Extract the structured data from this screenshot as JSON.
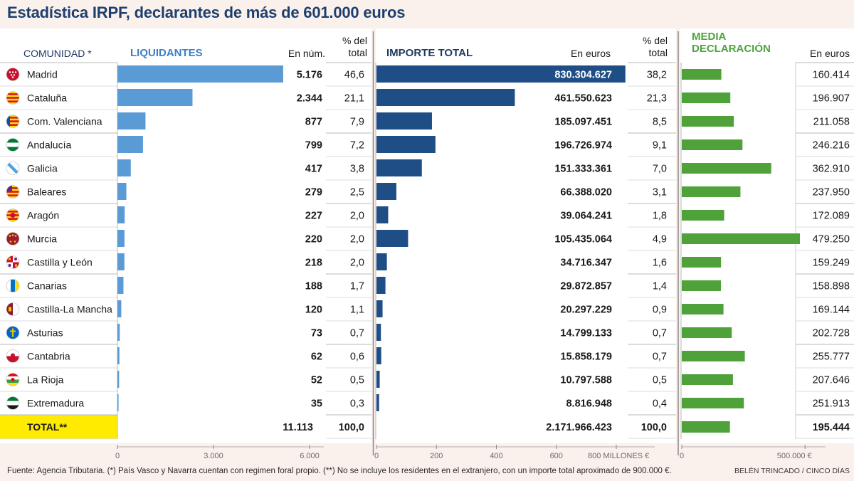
{
  "title": "Estadística IRPF, declarantes de más de 601.000 euros",
  "headers": {
    "comunidad": "COMUNIDAD *",
    "liquidantes": "LIQUIDANTES",
    "en_num": "En núm.",
    "pct_total_1": "% del total",
    "importe_total": "IMPORTE TOTAL",
    "en_euros_1": "En euros",
    "pct_total_2": "% del total",
    "media": "MEDIA DECLARACIÓN",
    "en_euros_2": "En euros"
  },
  "colors": {
    "liquidantes_bar": "#5b9bd5",
    "importe_bar": "#1f4e86",
    "media_bar": "#4fa23a",
    "total_highlight": "#ffeb00",
    "title": "#1d3f6e",
    "header_blue": "#3b7fc4",
    "header_dark": "#1f3a63",
    "header_green": "#4fa23a"
  },
  "total": {
    "label": "TOTAL**",
    "liquidantes": "11.113",
    "pct_liq": "100,0",
    "importe": "2.171.966.423",
    "pct_imp": "100,0",
    "media": "195.444"
  },
  "axes": {
    "liquidantes_ticks": [
      "0",
      "3.000",
      "6.000"
    ],
    "importe_ticks": [
      "0",
      "200",
      "400",
      "600",
      "800 MILLONES €"
    ],
    "media_ticks": [
      "0",
      "500.000 €"
    ]
  },
  "footer": {
    "source": "Fuente: Agencia Tributaria. (*) País Vasco y Navarra cuentan con regimen foral propio. (**) No se incluye los residentes en el extranjero, con un importe total aproximado de 900.000 €.",
    "credit": "BELÉN TRINCADO / CINCO DÍAS"
  },
  "chart_data": {
    "type": "table",
    "title": "Estadística IRPF, declarantes de más de 601.000 euros",
    "columns": [
      "Comunidad",
      "Liquidantes (núm.)",
      "% del total",
      "Importe total (euros)",
      "% del total",
      "Media declaración (euros)"
    ],
    "rows": [
      {
        "name": "Madrid",
        "liq": 5176,
        "liq_label": "5.176",
        "pct_liq": "46,6",
        "imp": 830304627,
        "imp_label": "830.304.627",
        "pct_imp": "38,2",
        "media": 160414,
        "media_label": "160.414",
        "flag": "madrid-flag-icon"
      },
      {
        "name": "Cataluña",
        "liq": 2344,
        "liq_label": "2.344",
        "pct_liq": "21,1",
        "imp": 461550623,
        "imp_label": "461.550.623",
        "pct_imp": "21,3",
        "media": 196907,
        "media_label": "196.907",
        "flag": "cataluna-flag-icon"
      },
      {
        "name": "Com. Valenciana",
        "liq": 877,
        "liq_label": "877",
        "pct_liq": "7,9",
        "imp": 185097451,
        "imp_label": "185.097.451",
        "pct_imp": "8,5",
        "media": 211058,
        "media_label": "211.058",
        "flag": "valenciana-flag-icon"
      },
      {
        "name": "Andalucía",
        "liq": 799,
        "liq_label": "799",
        "pct_liq": "7,2",
        "imp": 196726974,
        "imp_label": "196.726.974",
        "pct_imp": "9,1",
        "media": 246216,
        "media_label": "246.216",
        "flag": "andalucia-flag-icon"
      },
      {
        "name": "Galicia",
        "liq": 417,
        "liq_label": "417",
        "pct_liq": "3,8",
        "imp": 151333361,
        "imp_label": "151.333.361",
        "pct_imp": "7,0",
        "media": 362910,
        "media_label": "362.910",
        "flag": "galicia-flag-icon"
      },
      {
        "name": "Baleares",
        "liq": 279,
        "liq_label": "279",
        "pct_liq": "2,5",
        "imp": 66388020,
        "imp_label": "66.388.020",
        "pct_imp": "3,1",
        "media": 237950,
        "media_label": "237.950",
        "flag": "baleares-flag-icon"
      },
      {
        "name": "Aragón",
        "liq": 227,
        "liq_label": "227",
        "pct_liq": "2,0",
        "imp": 39064241,
        "imp_label": "39.064.241",
        "pct_imp": "1,8",
        "media": 172089,
        "media_label": "172.089",
        "flag": "aragon-flag-icon"
      },
      {
        "name": "Murcia",
        "liq": 220,
        "liq_label": "220",
        "pct_liq": "2,0",
        "imp": 105435064,
        "imp_label": "105.435.064",
        "pct_imp": "4,9",
        "media": 479250,
        "media_label": "479.250",
        "flag": "murcia-flag-icon"
      },
      {
        "name": "Castilla y León",
        "liq": 218,
        "liq_label": "218",
        "pct_liq": "2,0",
        "imp": 34716347,
        "imp_label": "34.716.347",
        "pct_imp": "1,6",
        "media": 159249,
        "media_label": "159.249",
        "flag": "castilla-leon-flag-icon"
      },
      {
        "name": "Canarias",
        "liq": 188,
        "liq_label": "188",
        "pct_liq": "1,7",
        "imp": 29872857,
        "imp_label": "29.872.857",
        "pct_imp": "1,4",
        "media": 158898,
        "media_label": "158.898",
        "flag": "canarias-flag-icon"
      },
      {
        "name": "Castilla-La Mancha",
        "liq": 120,
        "liq_label": "120",
        "pct_liq": "1,1",
        "imp": 20297229,
        "imp_label": "20.297.229",
        "pct_imp": "0,9",
        "media": 169144,
        "media_label": "169.144",
        "flag": "castilla-la-mancha-flag-icon"
      },
      {
        "name": "Asturias",
        "liq": 73,
        "liq_label": "73",
        "pct_liq": "0,7",
        "imp": 14799133,
        "imp_label": "14.799.133",
        "pct_imp": "0,7",
        "media": 202728,
        "media_label": "202.728",
        "flag": "asturias-flag-icon"
      },
      {
        "name": "Cantabria",
        "liq": 62,
        "liq_label": "62",
        "pct_liq": "0,6",
        "imp": 15858179,
        "imp_label": "15.858.179",
        "pct_imp": "0,7",
        "media": 255777,
        "media_label": "255.777",
        "flag": "cantabria-flag-icon"
      },
      {
        "name": "La Rioja",
        "liq": 52,
        "liq_label": "52",
        "pct_liq": "0,5",
        "imp": 10797588,
        "imp_label": "10.797.588",
        "pct_imp": "0,5",
        "media": 207646,
        "media_label": "207.646",
        "flag": "la-rioja-flag-icon"
      },
      {
        "name": "Extremadura",
        "liq": 35,
        "liq_label": "35",
        "pct_liq": "0,3",
        "imp": 8816948,
        "imp_label": "8.816.948",
        "pct_imp": "0,4",
        "media": 251913,
        "media_label": "251.913",
        "flag": "extremadura-flag-icon"
      }
    ],
    "total_media": 195444,
    "liquidantes_xlim": [
      0,
      6000
    ],
    "importe_xlim_millions": [
      0,
      800
    ],
    "media_xlim": [
      0,
      500000
    ]
  }
}
